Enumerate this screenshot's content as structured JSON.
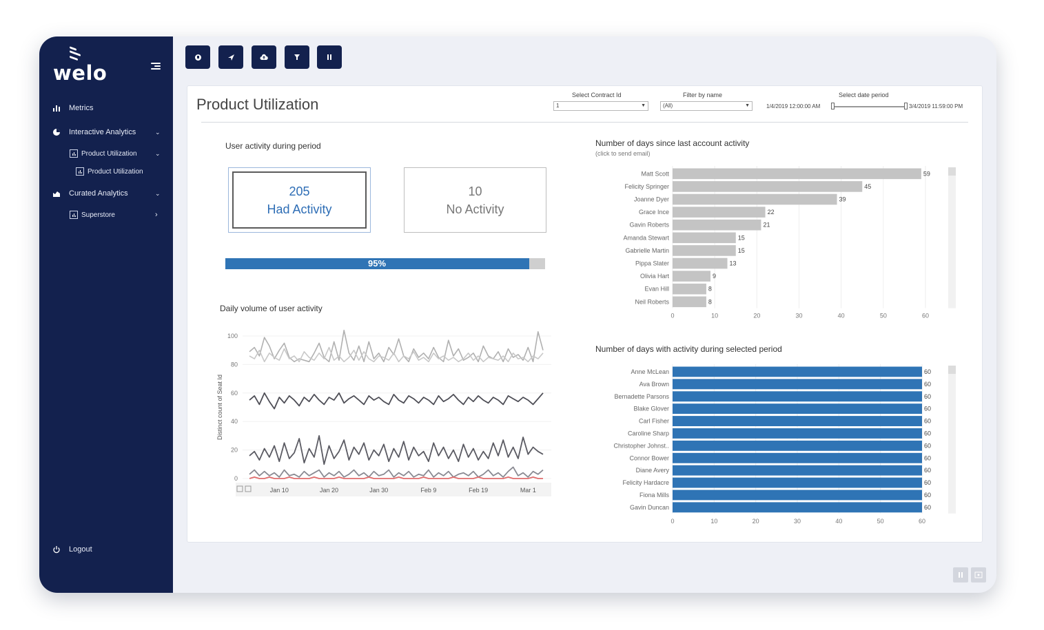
{
  "brand": {
    "name": "welo"
  },
  "sidebar": {
    "items": [
      {
        "label": "Metrics",
        "icon": "bar-chart-icon"
      },
      {
        "label": "Interactive Analytics",
        "icon": "pie-chart-icon"
      },
      {
        "label": "Product Utilization",
        "icon": "report-icon"
      },
      {
        "label": "Product Utilization",
        "icon": "report-icon"
      },
      {
        "label": "Curated Analytics",
        "icon": "area-chart-icon"
      },
      {
        "label": "Superstore",
        "icon": "report-icon"
      }
    ],
    "logout_label": "Logout"
  },
  "toolbar": {
    "buttons": [
      "home-icon",
      "send-icon",
      "cloud-icon",
      "filter-icon",
      "pause-icon"
    ]
  },
  "dashboard": {
    "title": "Product Utilization",
    "filters": {
      "contract_label": "Select Contract Id",
      "contract_value": "1",
      "name_label": "Filter by name",
      "name_value": "(All)",
      "date_label": "Select date period",
      "date_start": "1/4/2019 12:00:00 AM",
      "date_end": "3/4/2019 11:59:00 PM"
    },
    "activity": {
      "title": "User activity during period",
      "had_count": "205",
      "had_label": "Had Activity",
      "no_count": "10",
      "no_label": "No Activity",
      "percent": 95,
      "percent_label": "95%"
    },
    "daily": {
      "title": "Daily volume of user activity"
    },
    "since_last": {
      "title": "Number of days since last account activity",
      "subtitle": "(click to send email)"
    },
    "days_active": {
      "title": "Number of days with activity during selected period"
    }
  },
  "chart_data": [
    {
      "type": "bar",
      "orientation": "horizontal",
      "title": "Number of days since last account activity",
      "categories": [
        "Matt Scott",
        "Felicity Springer",
        "Joanne Dyer",
        "Grace Ince",
        "Gavin Roberts",
        "Amanda Stewart",
        "Gabrielle Martin",
        "Pippa Slater",
        "Olivia Hart",
        "Evan Hill",
        "Neil Roberts"
      ],
      "values": [
        59,
        45,
        39,
        22,
        21,
        15,
        15,
        13,
        9,
        8,
        8
      ],
      "xticks": [
        0,
        10,
        20,
        30,
        40,
        50,
        60
      ],
      "xlim": [
        0,
        60
      ],
      "color": "#c4c4c4"
    },
    {
      "type": "bar",
      "orientation": "horizontal",
      "title": "Number of days with activity during selected period",
      "categories": [
        "Anne McLean",
        "Ava Brown",
        "Bernadette Parsons",
        "Blake Glover",
        "Carl Fisher",
        "Caroline Sharp",
        "Christopher Johnst..",
        "Connor Bower",
        "Diane Avery",
        "Felicity Hardacre",
        "Fiona Mills",
        "Gavin Duncan"
      ],
      "values": [
        60,
        60,
        60,
        60,
        60,
        60,
        60,
        60,
        60,
        60,
        60,
        60
      ],
      "xticks": [
        0,
        10,
        20,
        30,
        40,
        50,
        60
      ],
      "xlim": [
        0,
        60
      ],
      "color": "#2f74b5"
    },
    {
      "type": "line",
      "title": "Daily volume of user activity",
      "ylabel": "Distinct count of Seat Id",
      "yticks": [
        0,
        20,
        40,
        60,
        80,
        100
      ],
      "ylim": [
        0,
        100
      ],
      "xticks": [
        "Jan 10",
        "Jan 20",
        "Jan 30",
        "Feb 9",
        "Feb 19",
        "Mar 1"
      ],
      "x": [
        "Jan 4",
        "Jan 5",
        "Jan 6",
        "Jan 7",
        "Jan 8",
        "Jan 9",
        "Jan 10",
        "Jan 11",
        "Jan 12",
        "Jan 13",
        "Jan 14",
        "Jan 15",
        "Jan 16",
        "Jan 17",
        "Jan 18",
        "Jan 19",
        "Jan 20",
        "Jan 21",
        "Jan 22",
        "Jan 23",
        "Jan 24",
        "Jan 25",
        "Jan 26",
        "Jan 27",
        "Jan 28",
        "Jan 29",
        "Jan 30",
        "Jan 31",
        "Feb 1",
        "Feb 2",
        "Feb 3",
        "Feb 4",
        "Feb 5",
        "Feb 6",
        "Feb 7",
        "Feb 8",
        "Feb 9",
        "Feb 10",
        "Feb 11",
        "Feb 12",
        "Feb 13",
        "Feb 14",
        "Feb 15",
        "Feb 16",
        "Feb 17",
        "Feb 18",
        "Feb 19",
        "Feb 20",
        "Feb 21",
        "Feb 22",
        "Feb 23",
        "Feb 24",
        "Feb 25",
        "Feb 26",
        "Feb 27",
        "Feb 28",
        "Mar 1",
        "Mar 2",
        "Mar 3",
        "Mar 4"
      ],
      "series": [
        {
          "color": "#b0b0b0",
          "values": [
            89,
            92,
            86,
            99,
            93,
            84,
            90,
            95,
            85,
            82,
            84,
            83,
            82,
            88,
            95,
            85,
            82,
            96,
            83,
            104,
            88,
            83,
            93,
            82,
            96,
            84,
            88,
            82,
            92,
            87,
            98,
            86,
            82,
            91,
            85,
            88,
            84,
            92,
            85,
            82,
            97,
            86,
            91,
            83,
            85,
            88,
            82,
            93,
            86,
            84,
            89,
            82,
            91,
            85,
            87,
            83,
            92,
            82,
            103,
            90
          ]
        },
        {
          "color": "#c8c8c8",
          "values": [
            86,
            84,
            90,
            82,
            88,
            85,
            83,
            91,
            84,
            86,
            82,
            89,
            85,
            83,
            88,
            84,
            92,
            83,
            86,
            82,
            85,
            90,
            83,
            89,
            84,
            82,
            86,
            85,
            83,
            88,
            82,
            86,
            84,
            89,
            83,
            85,
            82,
            88,
            84,
            86,
            83,
            85,
            82,
            84,
            88,
            83,
            86,
            82,
            85,
            84,
            83,
            86,
            82,
            88,
            84,
            85,
            82,
            86,
            84,
            88
          ]
        },
        {
          "color": "#4e4e56",
          "values": [
            55,
            58,
            52,
            60,
            54,
            49,
            57,
            53,
            58,
            55,
            51,
            57,
            54,
            59,
            55,
            52,
            57,
            55,
            60,
            53,
            56,
            58,
            55,
            52,
            58,
            55,
            57,
            54,
            52,
            59,
            55,
            53,
            58,
            56,
            53,
            57,
            55,
            52,
            58,
            54,
            56,
            59,
            55,
            52,
            57,
            54,
            58,
            55,
            53,
            57,
            55,
            52,
            58,
            56,
            54,
            57,
            55,
            52,
            56,
            60
          ]
        },
        {
          "color": "#5a5a62",
          "values": [
            16,
            19,
            13,
            21,
            15,
            23,
            12,
            25,
            14,
            18,
            28,
            11,
            21,
            15,
            30,
            10,
            23,
            14,
            19,
            27,
            13,
            22,
            17,
            25,
            13,
            20,
            16,
            24,
            12,
            21,
            15,
            26,
            13,
            22,
            16,
            19,
            12,
            25,
            16,
            22,
            14,
            20,
            12,
            24,
            15,
            21,
            13,
            19,
            14,
            25,
            16,
            27,
            15,
            22,
            14,
            29,
            17,
            22,
            19,
            17
          ]
        },
        {
          "color": "#8a8a92",
          "values": [
            3,
            6,
            2,
            5,
            2,
            4,
            1,
            6,
            2,
            3,
            1,
            5,
            2,
            4,
            6,
            1,
            4,
            2,
            5,
            1,
            3,
            6,
            2,
            4,
            1,
            5,
            2,
            3,
            6,
            1,
            4,
            2,
            5,
            1,
            3,
            2,
            6,
            1,
            4,
            2,
            5,
            1,
            3,
            4,
            2,
            5,
            1,
            3,
            6,
            2,
            4,
            1,
            5,
            8,
            2,
            4,
            1,
            5,
            3,
            6
          ]
        },
        {
          "color": "#e06c6c",
          "values": [
            0,
            1,
            0,
            0,
            1,
            0,
            0,
            0,
            1,
            0,
            0,
            0,
            0,
            1,
            0,
            0,
            0,
            0,
            1,
            0,
            0,
            0,
            0,
            0,
            1,
            0,
            0,
            0,
            0,
            0,
            1,
            0,
            0,
            0,
            0,
            1,
            0,
            0,
            0,
            0,
            0,
            1,
            0,
            0,
            0,
            0,
            1,
            0,
            0,
            0,
            0,
            0,
            1,
            0,
            0,
            0,
            0,
            1,
            0,
            0
          ]
        }
      ]
    }
  ]
}
